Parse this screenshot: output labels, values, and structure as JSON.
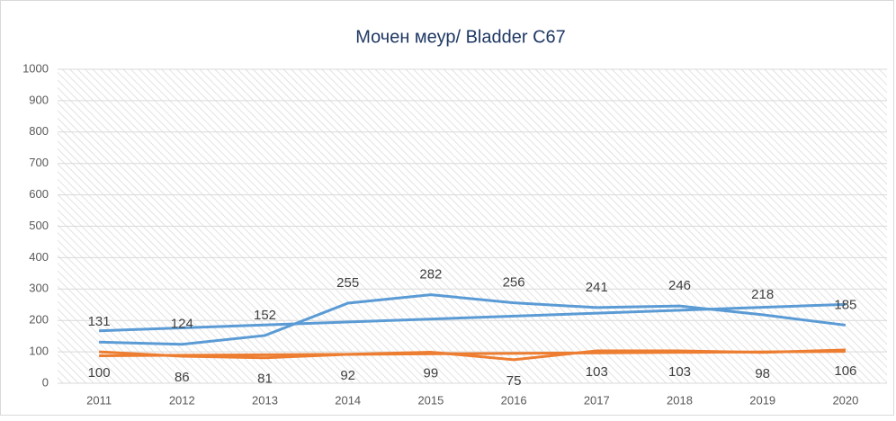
{
  "chart_data": {
    "type": "line",
    "title": "Мочен меур/ Bladder C67",
    "categories": [
      "2011",
      "2012",
      "2013",
      "2014",
      "2015",
      "2016",
      "2017",
      "2018",
      "2019",
      "2020"
    ],
    "series": [
      {
        "color": "#5b9bd5",
        "values": [
          131,
          124,
          152,
          255,
          282,
          256,
          241,
          246,
          218,
          185
        ]
      },
      {
        "color": "#ed7d31",
        "values": [
          100,
          86,
          81,
          92,
          99,
          75,
          103,
          103,
          98,
          106
        ]
      }
    ],
    "ylim": [
      0,
      1000
    ],
    "yticks": [
      0,
      100,
      200,
      300,
      400,
      500,
      600,
      700,
      800,
      900,
      1000
    ],
    "grid": true,
    "trendline": "linear",
    "data_labels": true
  }
}
